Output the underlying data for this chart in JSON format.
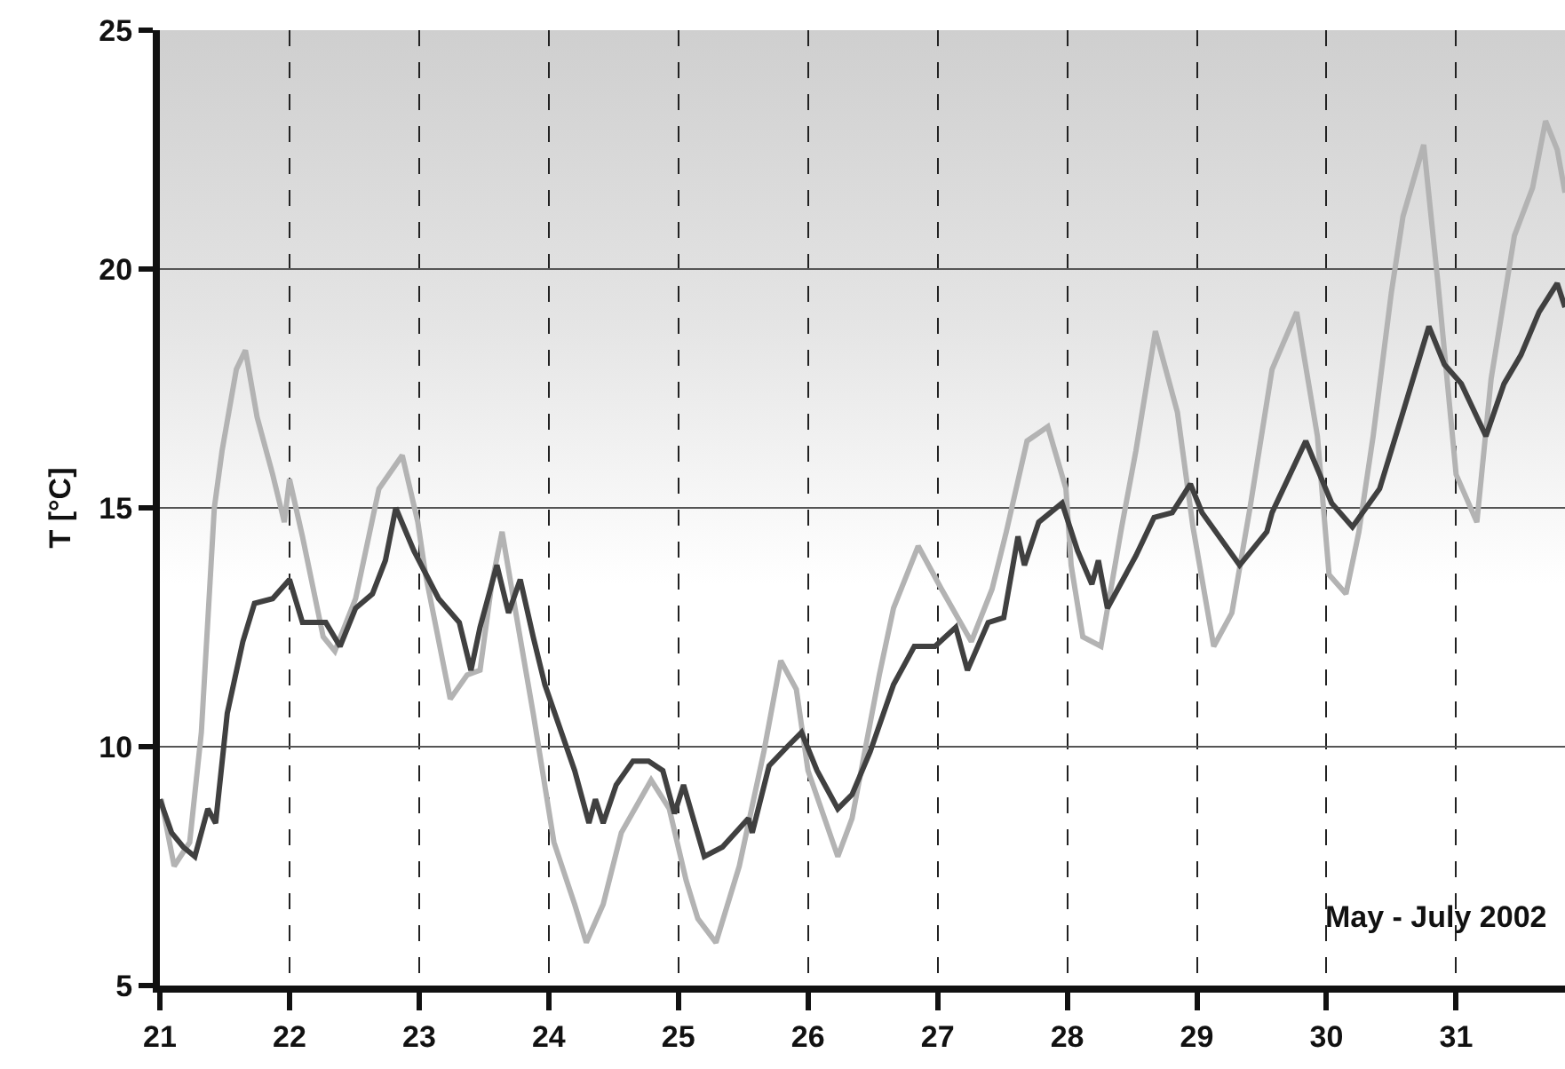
{
  "chart_data": {
    "type": "line",
    "ylabel": "T [°C]",
    "annotations": [
      "May - July 2002"
    ],
    "xlim": [
      21,
      31.84
    ],
    "xticks": [
      21,
      22,
      23,
      24,
      25,
      26,
      27,
      28,
      29,
      30,
      31
    ],
    "ylim": [
      5,
      25
    ],
    "yticks": [
      5,
      10,
      15,
      20,
      25
    ],
    "grid": true,
    "marker": "none",
    "line_style": "solid",
    "series": [
      {
        "color": "#b3b3b3",
        "x": [
          21.01,
          21.11,
          21.23,
          21.32,
          21.42,
          21.48,
          21.59,
          21.66,
          21.75,
          21.87,
          21.96,
          22.0,
          22.1,
          22.26,
          22.35,
          22.51,
          22.69,
          22.87,
          22.99,
          23.05,
          23.24,
          23.37,
          23.47,
          23.56,
          23.64,
          23.74,
          23.88,
          24.04,
          24.2,
          24.29,
          24.42,
          24.56,
          24.79,
          24.93,
          25.06,
          25.15,
          25.29,
          25.47,
          25.66,
          25.79,
          25.91,
          26.0,
          26.23,
          26.34,
          26.55,
          26.66,
          26.85,
          27.03,
          27.26,
          27.42,
          27.53,
          27.69,
          27.85,
          27.99,
          28.03,
          28.12,
          28.26,
          28.42,
          28.53,
          28.68,
          28.85,
          28.97,
          29.13,
          29.27,
          29.41,
          29.58,
          29.77,
          29.93,
          30.02,
          30.15,
          30.25,
          30.36,
          30.5,
          30.59,
          30.75,
          30.86,
          31.0,
          31.16,
          31.27,
          31.45,
          31.59,
          31.69,
          31.78,
          31.84
        ],
        "values": [
          8.9,
          7.5,
          8.0,
          10.3,
          15.0,
          16.2,
          17.9,
          18.3,
          16.9,
          15.7,
          14.7,
          15.6,
          14.4,
          12.3,
          12.0,
          13.1,
          15.4,
          16.1,
          14.7,
          13.6,
          11.0,
          11.5,
          11.6,
          13.4,
          14.5,
          12.9,
          10.7,
          8.0,
          6.7,
          5.9,
          6.7,
          8.2,
          9.3,
          8.7,
          7.2,
          6.4,
          5.9,
          7.5,
          9.9,
          11.8,
          11.2,
          9.5,
          7.7,
          8.5,
          11.5,
          12.9,
          14.2,
          13.3,
          12.2,
          13.3,
          14.5,
          16.4,
          16.7,
          15.4,
          13.8,
          12.3,
          12.1,
          14.6,
          16.2,
          18.7,
          17.0,
          14.6,
          12.1,
          12.8,
          15.0,
          17.9,
          19.1,
          16.5,
          13.6,
          13.2,
          14.5,
          16.5,
          19.5,
          21.1,
          22.6,
          19.7,
          15.7,
          14.7,
          17.7,
          20.7,
          21.7,
          23.1,
          22.5,
          21.6
        ]
      },
      {
        "color": "#404040",
        "x": [
          21.0,
          21.09,
          21.18,
          21.27,
          21.37,
          21.43,
          21.52,
          21.64,
          21.73,
          21.87,
          22.0,
          22.1,
          22.28,
          22.39,
          22.51,
          22.64,
          22.74,
          22.82,
          22.96,
          23.15,
          23.31,
          23.4,
          23.47,
          23.6,
          23.69,
          23.78,
          23.88,
          23.97,
          24.2,
          24.31,
          24.36,
          24.42,
          24.52,
          24.65,
          24.77,
          24.88,
          24.97,
          25.04,
          25.2,
          25.34,
          25.54,
          25.57,
          25.7,
          25.84,
          25.95,
          26.07,
          26.23,
          26.34,
          26.48,
          26.66,
          26.82,
          26.98,
          27.14,
          27.23,
          27.39,
          27.51,
          27.62,
          27.67,
          27.78,
          27.96,
          28.08,
          28.19,
          28.24,
          28.31,
          28.53,
          28.67,
          28.81,
          28.95,
          29.04,
          29.33,
          29.54,
          29.58,
          29.84,
          30.04,
          30.2,
          30.41,
          30.59,
          30.79,
          30.91,
          31.04,
          31.23,
          31.37,
          31.5,
          31.64,
          31.78,
          31.84
        ],
        "values": [
          8.9,
          8.2,
          7.9,
          7.7,
          8.7,
          8.4,
          10.7,
          12.2,
          13.0,
          13.1,
          13.5,
          12.6,
          12.6,
          12.1,
          12.9,
          13.2,
          13.9,
          15.0,
          14.1,
          13.1,
          12.6,
          11.6,
          12.5,
          13.8,
          12.8,
          13.5,
          12.3,
          11.3,
          9.5,
          8.4,
          8.9,
          8.4,
          9.2,
          9.7,
          9.7,
          9.5,
          8.6,
          9.2,
          7.7,
          7.9,
          8.5,
          8.2,
          9.6,
          10.0,
          10.3,
          9.5,
          8.7,
          9.0,
          9.9,
          11.3,
          12.1,
          12.1,
          12.5,
          11.6,
          12.6,
          12.7,
          14.4,
          13.8,
          14.7,
          15.1,
          14.1,
          13.4,
          13.9,
          12.9,
          14.0,
          14.8,
          14.9,
          15.5,
          14.9,
          13.8,
          14.5,
          14.9,
          16.4,
          15.1,
          14.6,
          15.4,
          17.0,
          18.8,
          18.0,
          17.6,
          16.5,
          17.6,
          18.2,
          19.1,
          19.7,
          19.2
        ]
      }
    ]
  }
}
